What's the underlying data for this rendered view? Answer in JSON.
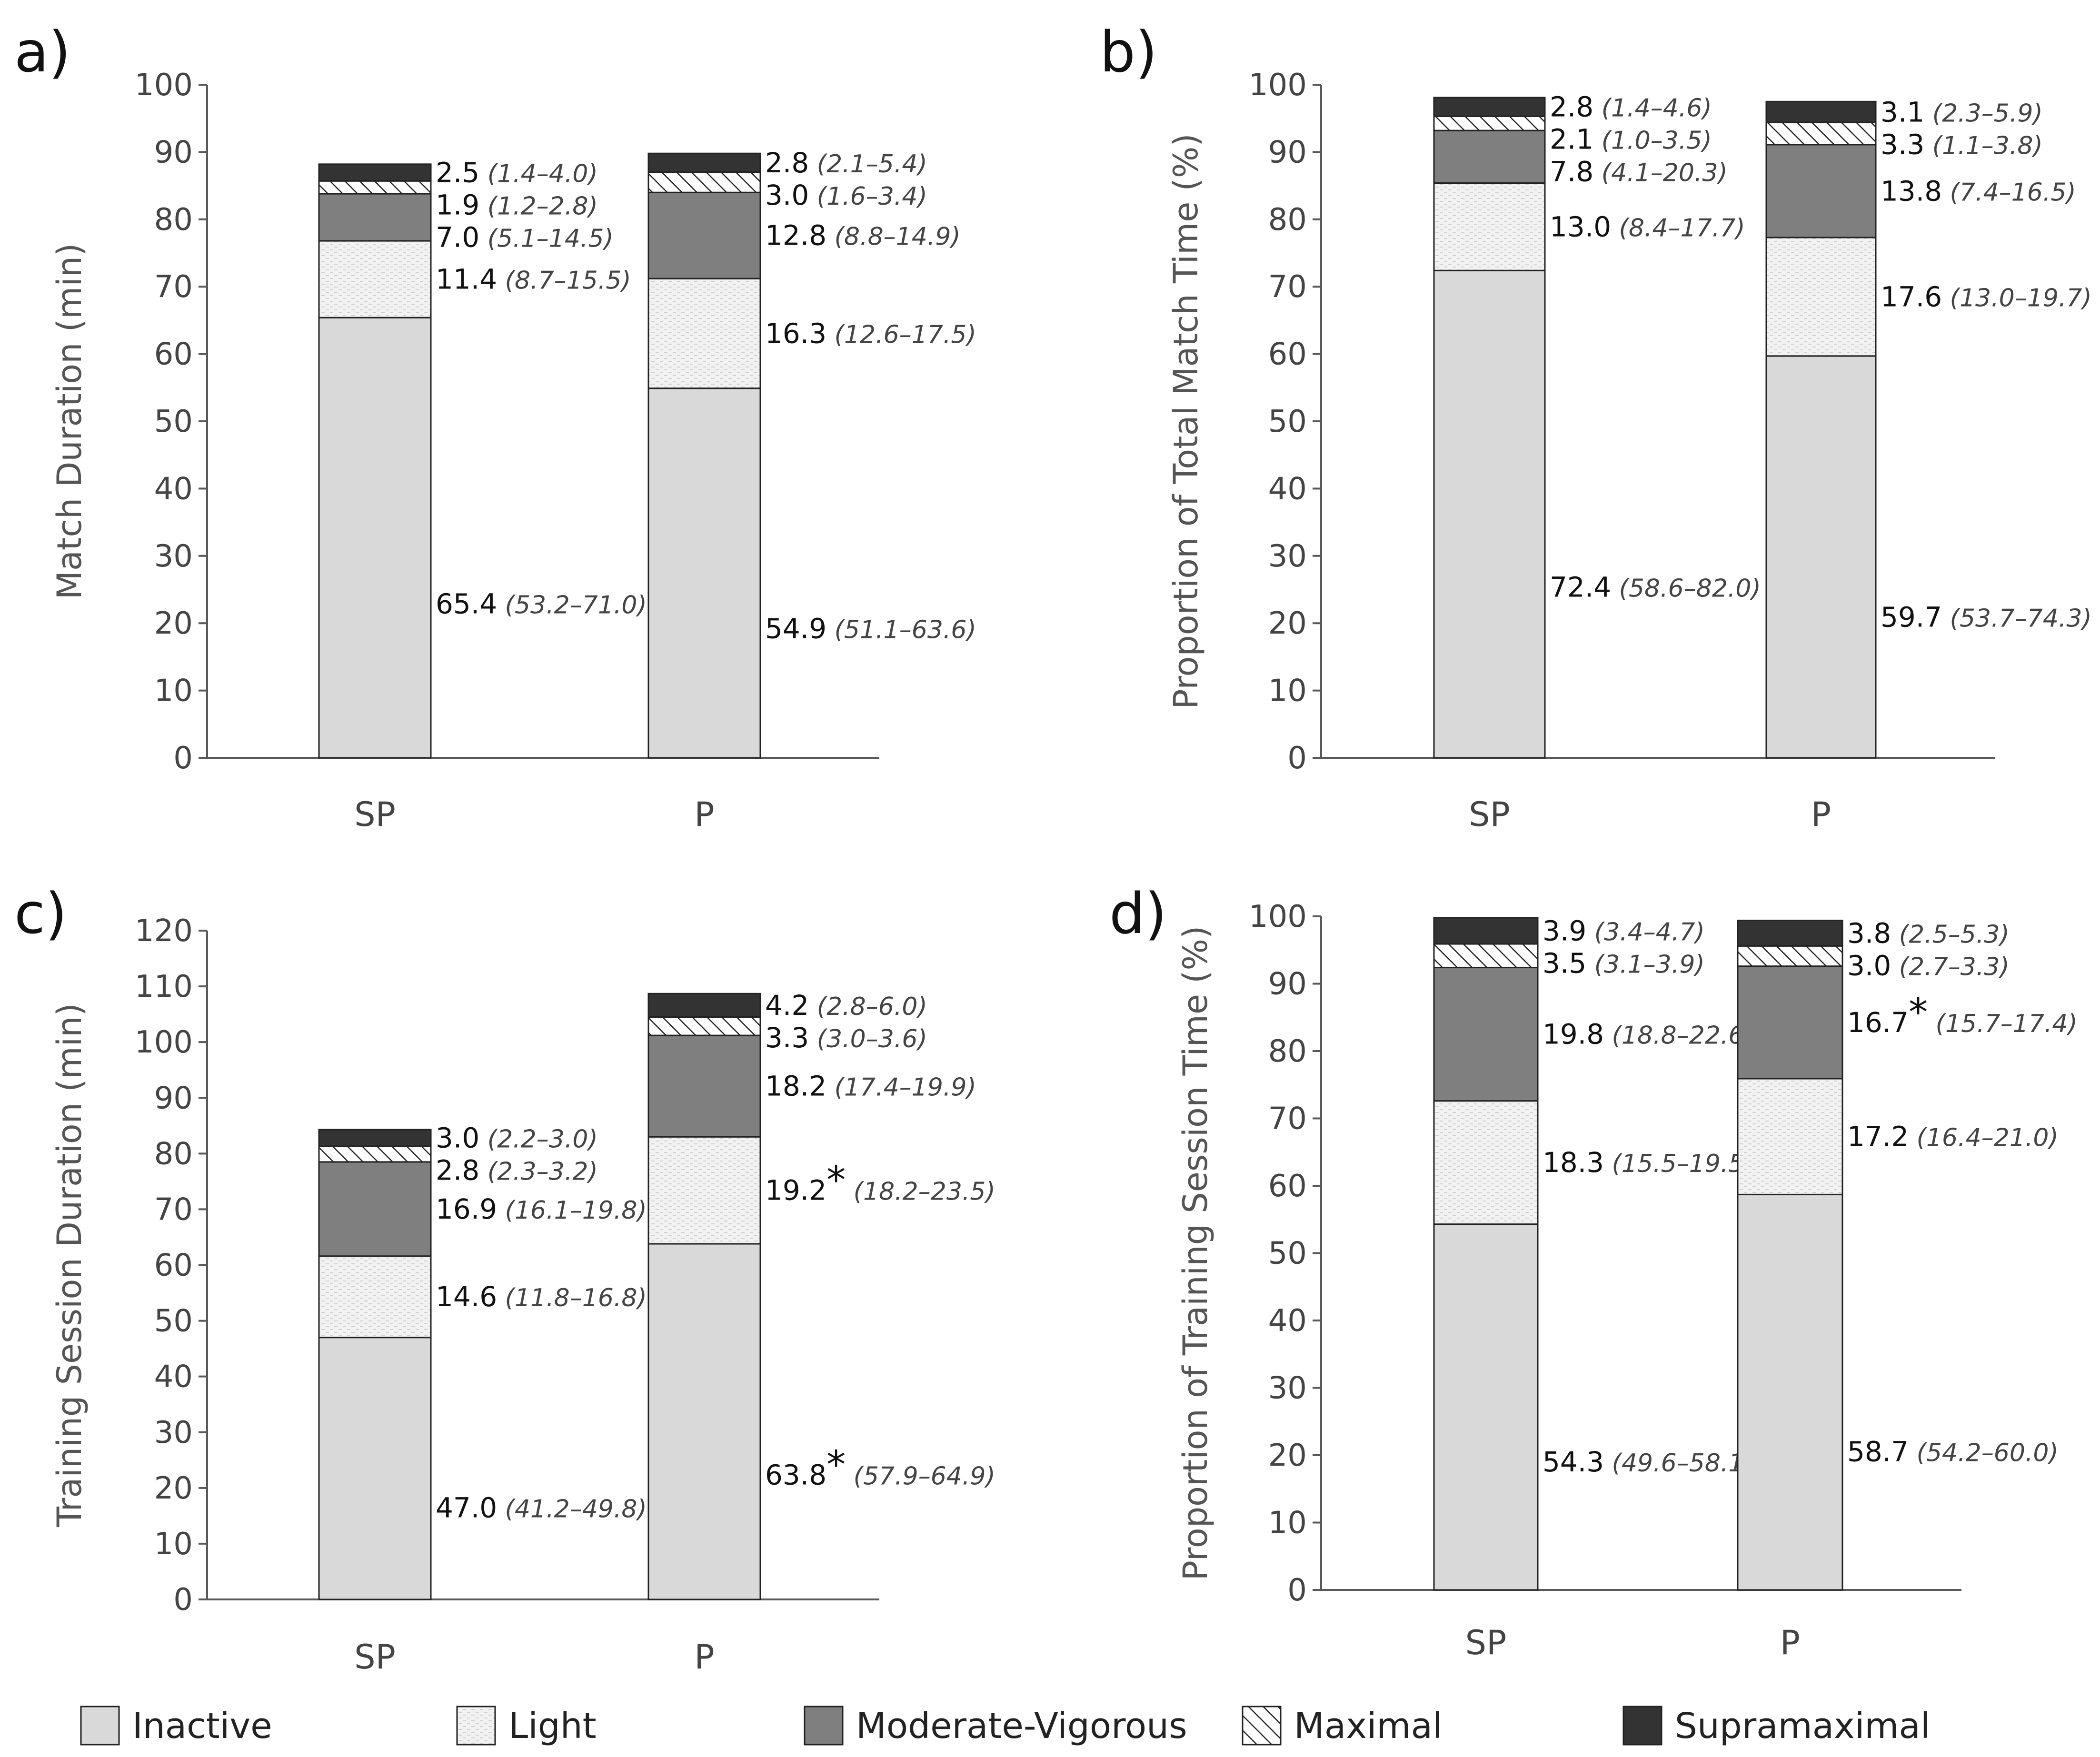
{
  "colors": {
    "inactive": "#d9d9d9",
    "light": "#f2f2f2",
    "moderate_vigorous": "#7f7f7f",
    "maximal": "#ffffff",
    "supramaximal": "#333333",
    "axis": "#595959",
    "stroke": "#222222"
  },
  "legend": [
    {
      "key": "inactive",
      "label": "Inactive"
    },
    {
      "key": "light",
      "label": "Light"
    },
    {
      "key": "moderate_vigorous",
      "label": "Moderate-Vigorous"
    },
    {
      "key": "maximal",
      "label": "Maximal"
    },
    {
      "key": "supramaximal",
      "label": "Supramaximal"
    }
  ],
  "chart_data": [
    {
      "panel": "a)",
      "type": "bar",
      "stacked": true,
      "ylabel": "Match Duration (min)",
      "ylim": [
        0,
        100
      ],
      "yticks": [
        "0",
        "10",
        "20",
        "30",
        "40",
        "50",
        "60",
        "70",
        "80",
        "90",
        "100"
      ],
      "categories": [
        "SP",
        "P"
      ],
      "series": [
        {
          "key": "inactive",
          "name": "Inactive",
          "values": [
            65.4,
            54.9
          ],
          "labels": [
            "65.4",
            "54.9"
          ],
          "ci": [
            "(53.2–71.0)",
            "(51.1–63.6)"
          ],
          "star": [
            false,
            false
          ]
        },
        {
          "key": "light",
          "name": "Light",
          "values": [
            11.4,
            16.3
          ],
          "labels": [
            "11.4",
            "16.3"
          ],
          "ci": [
            "(8.7–15.5)",
            "(12.6–17.5)"
          ],
          "star": [
            false,
            false
          ]
        },
        {
          "key": "moderate_vigorous",
          "name": "Moderate-Vigorous",
          "values": [
            7.0,
            12.8
          ],
          "labels": [
            "7.0",
            "12.8"
          ],
          "ci": [
            "(5.1–14.5)",
            "(8.8–14.9)"
          ],
          "star": [
            false,
            false
          ]
        },
        {
          "key": "maximal",
          "name": "Maximal",
          "values": [
            1.9,
            3.0
          ],
          "labels": [
            "1.9",
            "3.0"
          ],
          "ci": [
            "(1.2–2.8)",
            "(1.6–3.4)"
          ],
          "star": [
            false,
            false
          ]
        },
        {
          "key": "supramaximal",
          "name": "Supramaximal",
          "values": [
            2.5,
            2.8
          ],
          "labels": [
            "2.5",
            "2.8"
          ],
          "ci": [
            "(1.4–4.0)",
            "(2.1–5.4)"
          ],
          "star": [
            false,
            false
          ]
        }
      ]
    },
    {
      "panel": "b)",
      "type": "bar",
      "stacked": true,
      "ylabel": "Proportion of Total Match Time (%)",
      "ylim": [
        0,
        100
      ],
      "yticks": [
        "0",
        "10",
        "20",
        "30",
        "40",
        "50",
        "60",
        "70",
        "80",
        "90",
        "100"
      ],
      "categories": [
        "SP",
        "P"
      ],
      "series": [
        {
          "key": "inactive",
          "name": "Inactive",
          "values": [
            72.4,
            59.7
          ],
          "labels": [
            "72.4",
            "59.7"
          ],
          "ci": [
            "(58.6–82.0)",
            "(53.7–74.3)"
          ],
          "star": [
            false,
            false
          ]
        },
        {
          "key": "light",
          "name": "Light",
          "values": [
            13.0,
            17.6
          ],
          "labels": [
            "13.0",
            "17.6"
          ],
          "ci": [
            "(8.4–17.7)",
            "(13.0–19.7)"
          ],
          "star": [
            false,
            false
          ]
        },
        {
          "key": "moderate_vigorous",
          "name": "Moderate-Vigorous",
          "values": [
            7.8,
            13.8
          ],
          "labels": [
            "7.8",
            "13.8"
          ],
          "ci": [
            "(4.1–20.3)",
            "(7.4–16.5)"
          ],
          "star": [
            false,
            false
          ]
        },
        {
          "key": "maximal",
          "name": "Maximal",
          "values": [
            2.1,
            3.3
          ],
          "labels": [
            "2.1",
            "3.3"
          ],
          "ci": [
            "(1.0–3.5)",
            "(1.1–3.8)"
          ],
          "star": [
            false,
            false
          ]
        },
        {
          "key": "supramaximal",
          "name": "Supramaximal",
          "values": [
            2.8,
            3.1
          ],
          "labels": [
            "2.8",
            "3.1"
          ],
          "ci": [
            "(1.4–4.6)",
            "(2.3–5.9)"
          ],
          "star": [
            false,
            false
          ]
        }
      ]
    },
    {
      "panel": "c)",
      "type": "bar",
      "stacked": true,
      "ylabel": "Training Session Duration (min)",
      "ylim": [
        0,
        120
      ],
      "yticks": [
        "0",
        "10",
        "20",
        "30",
        "40",
        "50",
        "60",
        "70",
        "80",
        "90",
        "100",
        "110",
        "120"
      ],
      "categories": [
        "SP",
        "P"
      ],
      "series": [
        {
          "key": "inactive",
          "name": "Inactive",
          "values": [
            47.0,
            63.8
          ],
          "labels": [
            "47.0",
            "63.8"
          ],
          "ci": [
            "(41.2–49.8)",
            "(57.9–64.9)"
          ],
          "star": [
            false,
            true
          ]
        },
        {
          "key": "light",
          "name": "Light",
          "values": [
            14.6,
            19.2
          ],
          "labels": [
            "14.6",
            "19.2"
          ],
          "ci": [
            "(11.8–16.8)",
            "(18.2–23.5)"
          ],
          "star": [
            false,
            true
          ]
        },
        {
          "key": "moderate_vigorous",
          "name": "Moderate-Vigorous",
          "values": [
            16.9,
            18.2
          ],
          "labels": [
            "16.9",
            "18.2"
          ],
          "ci": [
            "(16.1–19.8)",
            "(17.4–19.9)"
          ],
          "star": [
            false,
            false
          ]
        },
        {
          "key": "maximal",
          "name": "Maximal",
          "values": [
            2.8,
            3.3
          ],
          "labels": [
            "2.8",
            "3.3"
          ],
          "ci": [
            "(2.3–3.2)",
            "(3.0–3.6)"
          ],
          "star": [
            false,
            false
          ]
        },
        {
          "key": "supramaximal",
          "name": "Supramaximal",
          "values": [
            3.0,
            4.2
          ],
          "labels": [
            "3.0",
            "4.2"
          ],
          "ci": [
            "(2.2–3.0)",
            "(2.8–6.0)"
          ],
          "star": [
            false,
            false
          ]
        }
      ]
    },
    {
      "panel": "d)",
      "type": "bar",
      "stacked": true,
      "ylabel": "Proportion of Training Session Time (%)",
      "ylim": [
        0,
        100
      ],
      "yticks": [
        "0",
        "10",
        "20",
        "30",
        "40",
        "50",
        "60",
        "70",
        "80",
        "90",
        "100"
      ],
      "categories": [
        "SP",
        "P"
      ],
      "series": [
        {
          "key": "inactive",
          "name": "Inactive",
          "values": [
            54.3,
            58.7
          ],
          "labels": [
            "54.3",
            "58.7"
          ],
          "ci": [
            "(49.6–58.1)",
            "(54.2–60.0)"
          ],
          "star": [
            false,
            false
          ]
        },
        {
          "key": "light",
          "name": "Light",
          "values": [
            18.3,
            17.2
          ],
          "labels": [
            "18.3",
            "17.2"
          ],
          "ci": [
            "(15.5–19.5)",
            "(16.4–21.0)"
          ],
          "star": [
            false,
            false
          ]
        },
        {
          "key": "moderate_vigorous",
          "name": "Moderate-Vigorous",
          "values": [
            19.8,
            16.7
          ],
          "labels": [
            "19.8",
            "16.7"
          ],
          "ci": [
            "(18.8–22.6)",
            "(15.7–17.4)"
          ],
          "star": [
            false,
            true
          ]
        },
        {
          "key": "maximal",
          "name": "Maximal",
          "values": [
            3.5,
            3.0
          ],
          "labels": [
            "3.5",
            "3.0"
          ],
          "ci": [
            "(3.1–3.9)",
            "(2.7–3.3)"
          ],
          "star": [
            false,
            false
          ]
        },
        {
          "key": "supramaximal",
          "name": "Supramaximal",
          "values": [
            3.9,
            3.8
          ],
          "labels": [
            "3.9",
            "3.8"
          ],
          "ci": [
            "(3.4–4.7)",
            "(2.5–5.3)"
          ],
          "star": [
            false,
            false
          ]
        }
      ]
    }
  ]
}
